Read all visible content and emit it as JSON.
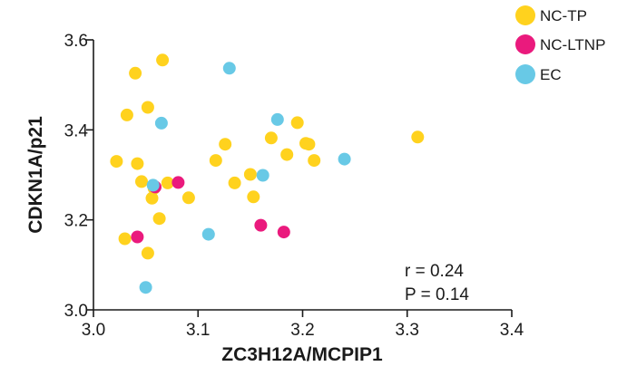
{
  "chart_data": {
    "type": "scatter",
    "xlabel": "ZC3H12A/MCPIP1",
    "ylabel": "CDKN1A/p21",
    "xlim": [
      3.0,
      3.4
    ],
    "ylim": [
      3.0,
      3.6
    ],
    "xticks": [
      "3.0",
      "3.1",
      "3.2",
      "3.3",
      "3.4"
    ],
    "yticks": [
      "3.0",
      "3.2",
      "3.4",
      "3.6"
    ],
    "grid": false,
    "legend_position": "top-right",
    "series": [
      {
        "name": "NC-TP",
        "color": "#ffd21e",
        "points": [
          {
            "x": 3.022,
            "y": 3.33
          },
          {
            "x": 3.03,
            "y": 3.158
          },
          {
            "x": 3.032,
            "y": 3.433
          },
          {
            "x": 3.04,
            "y": 3.526
          },
          {
            "x": 3.042,
            "y": 3.325
          },
          {
            "x": 3.046,
            "y": 3.285
          },
          {
            "x": 3.052,
            "y": 3.45
          },
          {
            "x": 3.052,
            "y": 3.126
          },
          {
            "x": 3.056,
            "y": 3.248
          },
          {
            "x": 3.058,
            "y": 3.27
          },
          {
            "x": 3.063,
            "y": 3.203
          },
          {
            "x": 3.066,
            "y": 3.555
          },
          {
            "x": 3.071,
            "y": 3.282
          },
          {
            "x": 3.091,
            "y": 3.249
          },
          {
            "x": 3.117,
            "y": 3.332
          },
          {
            "x": 3.126,
            "y": 3.368
          },
          {
            "x": 3.135,
            "y": 3.282
          },
          {
            "x": 3.15,
            "y": 3.301
          },
          {
            "x": 3.153,
            "y": 3.251
          },
          {
            "x": 3.17,
            "y": 3.382
          },
          {
            "x": 3.185,
            "y": 3.345
          },
          {
            "x": 3.195,
            "y": 3.416
          },
          {
            "x": 3.203,
            "y": 3.37
          },
          {
            "x": 3.206,
            "y": 3.368
          },
          {
            "x": 3.211,
            "y": 3.332
          },
          {
            "x": 3.31,
            "y": 3.384
          }
        ]
      },
      {
        "name": "NC-LTNP",
        "color": "#ea1a7d",
        "points": [
          {
            "x": 3.042,
            "y": 3.162
          },
          {
            "x": 3.059,
            "y": 3.273
          },
          {
            "x": 3.081,
            "y": 3.283
          },
          {
            "x": 3.16,
            "y": 3.188
          },
          {
            "x": 3.182,
            "y": 3.173
          }
        ]
      },
      {
        "name": "EC",
        "color": "#68c9e6",
        "points": [
          {
            "x": 3.05,
            "y": 3.05
          },
          {
            "x": 3.057,
            "y": 3.277
          },
          {
            "x": 3.065,
            "y": 3.415
          },
          {
            "x": 3.11,
            "y": 3.168
          },
          {
            "x": 3.13,
            "y": 3.537
          },
          {
            "x": 3.162,
            "y": 3.299
          },
          {
            "x": 3.176,
            "y": 3.423
          },
          {
            "x": 3.24,
            "y": 3.335
          }
        ]
      }
    ],
    "annotations": [
      "r = 0.24",
      "P = 0.14"
    ]
  }
}
